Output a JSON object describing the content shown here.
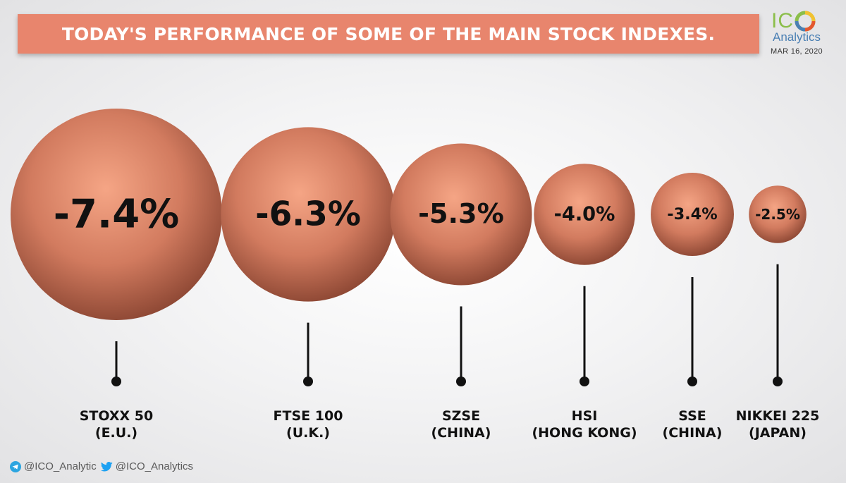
{
  "header": {
    "title": "TODAY'S PERFORMANCE OF SOME OF THE MAIN STOCK INDEXES."
  },
  "logo": {
    "mark": "ICO",
    "name": "Analytics",
    "date": "MAR 16, 2020",
    "colors": {
      "green": "#8bbe4a",
      "blue": "#4a7fb3",
      "yellow": "#f2c230",
      "red": "#e4572e"
    }
  },
  "footer": {
    "telegram_icon": "telegram-icon",
    "telegram_handle": "@ICO_Analytic",
    "twitter_icon": "twitter-icon",
    "twitter_handle": "@ICO_Analytics"
  },
  "colors": {
    "banner": "#e8856d",
    "bubble_light": "#f4a383",
    "bubble_dark": "#8f4a35",
    "stem": "#111111"
  },
  "chart_data": {
    "type": "bubble",
    "title": "TODAY'S PERFORMANCE OF SOME OF THE MAIN STOCK INDEXES.",
    "categories": [
      [
        "STOXX 50",
        "(E.U.)"
      ],
      [
        "FTSE 100",
        "(U.K.)"
      ],
      [
        "SZSE",
        "(CHINA)"
      ],
      [
        "HSI",
        "(HONG KONG)"
      ],
      [
        "SSE",
        "(CHINA)"
      ],
      [
        "NIKKEI 225",
        "(JAPAN)"
      ]
    ],
    "values": [
      -7.4,
      -6.3,
      -5.3,
      -4.0,
      -3.4,
      -2.5
    ],
    "value_labels": [
      "-7.4%",
      "-6.3%",
      "-5.3%",
      "-4.0%",
      "-3.4%",
      "-2.5%"
    ],
    "unit": "%"
  }
}
